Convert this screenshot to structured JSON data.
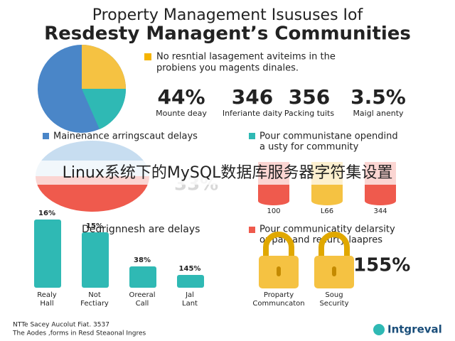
{
  "header": {
    "title_line1": "Property Management Isususes Iof",
    "title_line2": "Resdesty Managent’s Communities"
  },
  "intro": {
    "lines": [
      "No resntial lasagement aviteims in the",
      "probiens you magents dinales."
    ]
  },
  "stats": [
    {
      "value": "44%",
      "label": "Mounte deay"
    },
    {
      "value": "346",
      "label": "Inferiante daity"
    },
    {
      "value": "356",
      "label": "Packing tuits"
    },
    {
      "value": "3.5%",
      "label": "Maigl anenty"
    }
  ],
  "legend": {
    "left": "Mainenance arringscaut delays",
    "right_lines": [
      "Pour communistane opendind",
      "a usty for community"
    ]
  },
  "middle": {
    "pie_label": "33%",
    "cylinders": [
      "100",
      "L66",
      "344"
    ]
  },
  "banner": "Linux系统下的MySQL数据库服务器字符集设置",
  "bars": {
    "heading": "Degrignnesh are delays",
    "items": [
      {
        "value": "16%",
        "label_lines": [
          "Realy",
          "Hall"
        ]
      },
      {
        "value": "15%",
        "label_lines": [
          "Not",
          "Fectiary"
        ]
      },
      {
        "value": "38%",
        "label_lines": [
          "Oreeral",
          "Call"
        ]
      },
      {
        "value": "145%",
        "label_lines": [
          "Jal",
          "Lant"
        ]
      }
    ]
  },
  "security": {
    "note_lines": [
      "Pour communicatity delarsity",
      "or par. and recurty laapres"
    ],
    "big_value": "155%",
    "labels": [
      [
        "Proparty",
        "Communcaton"
      ],
      [
        "Soug",
        "Security"
      ]
    ]
  },
  "footer": {
    "lines": [
      "NTTe Sacey Aucolut Fiat. 3537",
      "The Aodes ,forms in Resd Steaonal Ingres"
    ],
    "logo": "Intgreval"
  }
}
